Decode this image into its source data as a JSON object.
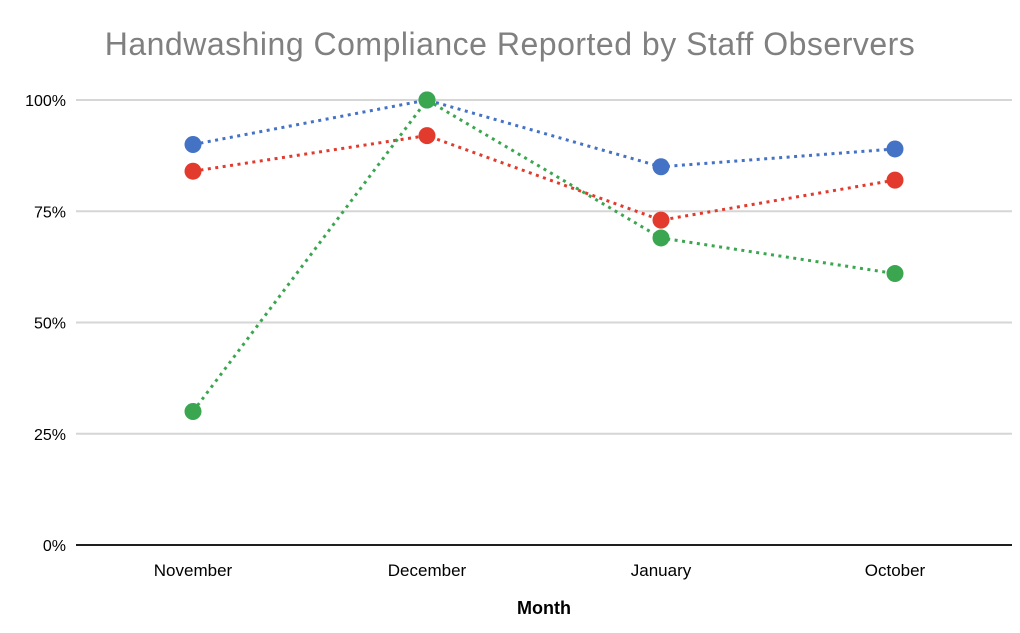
{
  "chart_data": {
    "type": "line",
    "title": "Handwashing Compliance Reported by Staff Observers",
    "xlabel": "Month",
    "ylabel": "",
    "categories": [
      "November",
      "December",
      "January",
      "October"
    ],
    "series": [
      {
        "name": "blue-series",
        "color": "#4472C4",
        "values": [
          90,
          100,
          85,
          89
        ]
      },
      {
        "name": "red-series",
        "color": "#E23B2E",
        "values": [
          84,
          92,
          73,
          82
        ]
      },
      {
        "name": "green-series",
        "color": "#3BA650",
        "values": [
          30,
          100,
          69,
          61
        ]
      }
    ],
    "y_ticks": [
      {
        "value": 0,
        "label": "0%"
      },
      {
        "value": 25,
        "label": "25%"
      },
      {
        "value": 50,
        "label": "50%"
      },
      {
        "value": 75,
        "label": "75%"
      },
      {
        "value": 100,
        "label": "100%"
      }
    ],
    "ylim": [
      0,
      100
    ],
    "line_style": "dotted",
    "marker": "circle",
    "legend_position": "none",
    "grid": true,
    "colors": {
      "title_color": "#808080",
      "grid_color": "#D6D6D6",
      "axis_color": "#1F1F1F",
      "tick_label_color": "#000000"
    }
  }
}
